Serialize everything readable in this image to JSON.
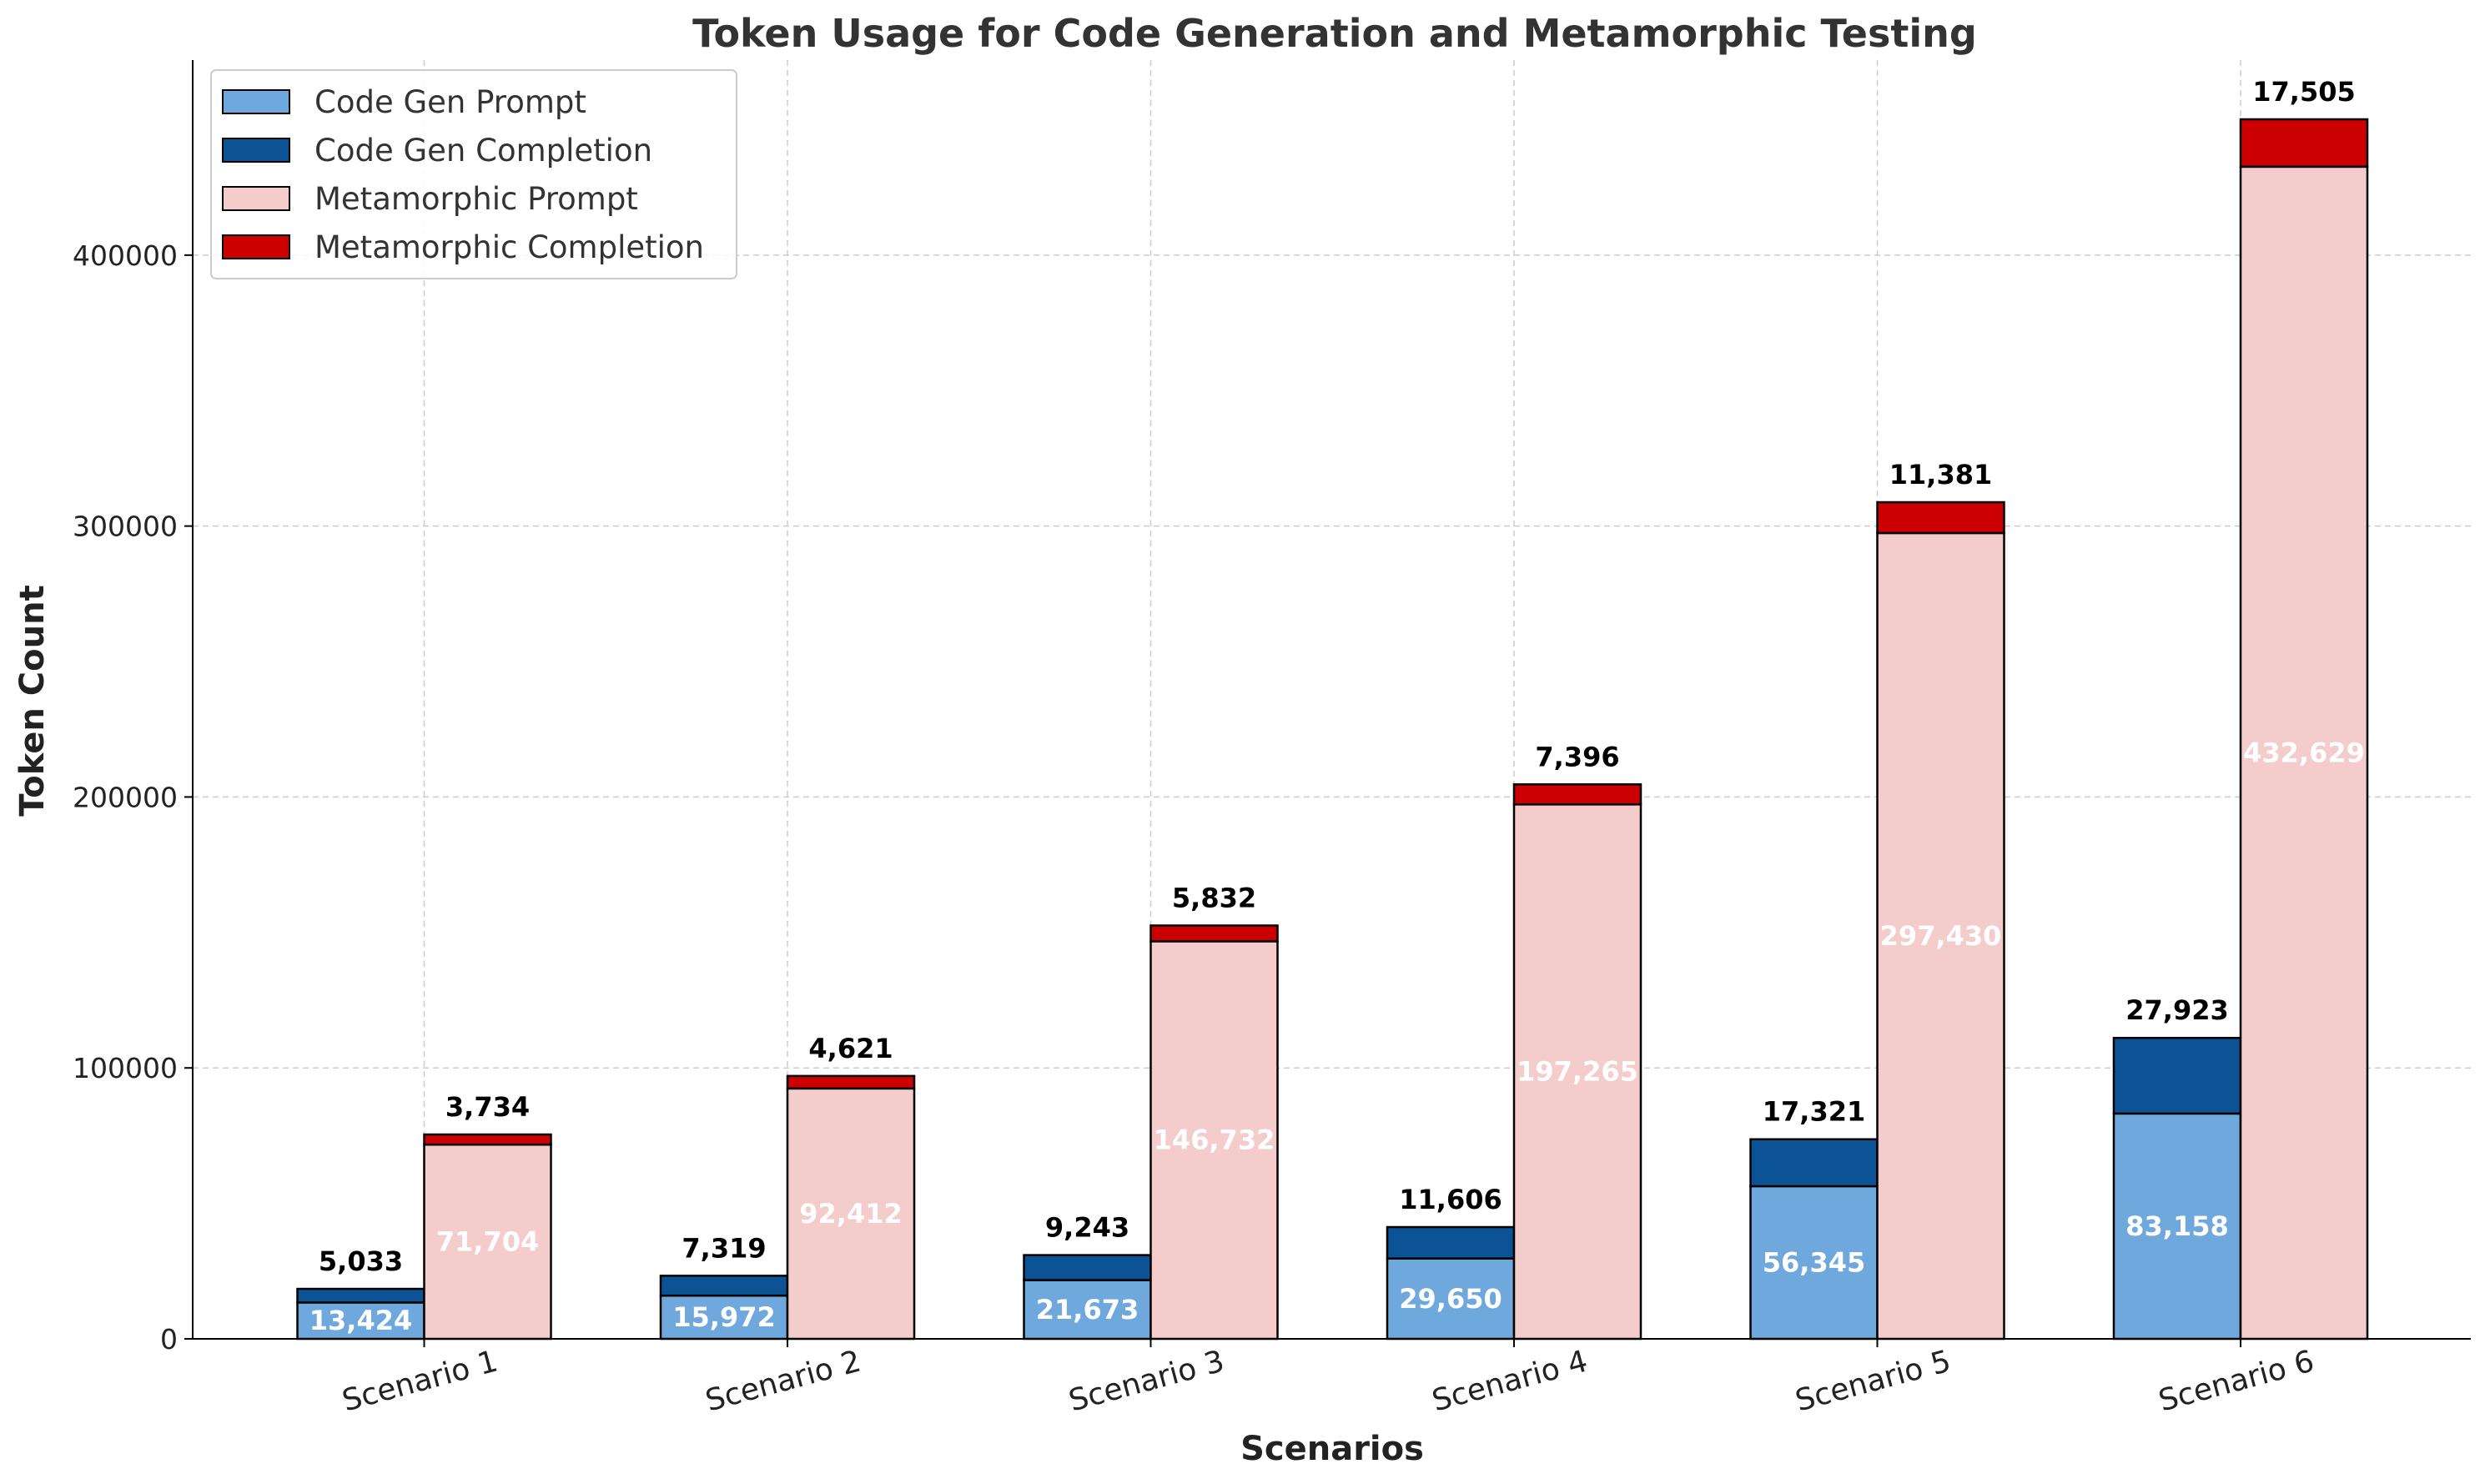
{
  "chart_data": {
    "type": "bar",
    "title": "Token Usage for Code Generation and Metamorphic Testing",
    "xlabel": "Scenarios",
    "ylabel": "Token Count",
    "categories": [
      "Scenario 1",
      "Scenario 2",
      "Scenario 3",
      "Scenario 4",
      "Scenario 5",
      "Scenario 6"
    ],
    "ylim": [
      0,
      472000
    ],
    "yticks": [
      0,
      100000,
      200000,
      300000,
      400000
    ],
    "ytick_labels": [
      "0",
      "100000",
      "200000",
      "300000",
      "400000"
    ],
    "grid": true,
    "legend_position": "top-left",
    "stacks": [
      {
        "group": "Code Gen",
        "series": [
          {
            "name": "Code Gen Prompt",
            "color": "#6fa8dc",
            "values": [
              13424,
              15972,
              21673,
              29650,
              56345,
              83158
            ],
            "labels": [
              "13,424",
              "15,972",
              "21,673",
              "29,650",
              "56,345",
              "83,158"
            ]
          },
          {
            "name": "Code Gen Completion",
            "color": "#0b5394",
            "values": [
              5033,
              7319,
              9243,
              11606,
              17321,
              27923
            ],
            "labels": [
              "5,033",
              "7,319",
              "9,243",
              "11,606",
              "17,321",
              "27,923"
            ]
          }
        ]
      },
      {
        "group": "Metamorphic",
        "series": [
          {
            "name": "Metamorphic Prompt",
            "color": "#f4cccc",
            "values": [
              71704,
              92412,
              146732,
              197265,
              297430,
              432629
            ],
            "labels": [
              "71,704",
              "92,412",
              "146,732",
              "197,265",
              "297,430",
              "432,629"
            ]
          },
          {
            "name": "Metamorphic Completion",
            "color": "#cc0000",
            "values": [
              3734,
              4621,
              5832,
              7396,
              11381,
              17505
            ],
            "labels": [
              "3,734",
              "4,621",
              "5,832",
              "7,396",
              "11,381",
              "17,505"
            ]
          }
        ]
      }
    ]
  }
}
